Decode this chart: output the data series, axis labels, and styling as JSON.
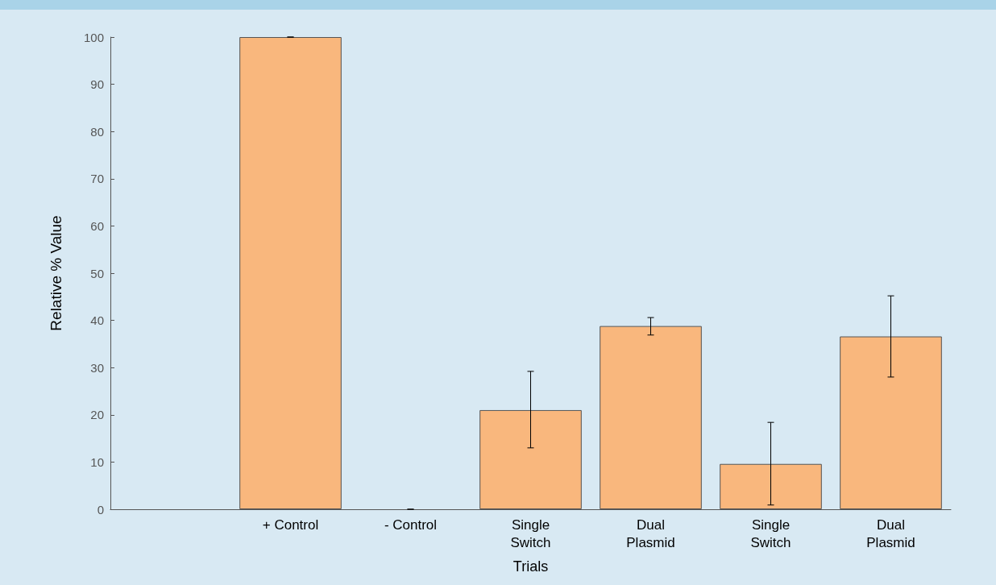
{
  "chart_data": {
    "type": "bar",
    "xlabel": "Trials",
    "ylabel": "Relative % Value",
    "categories": [
      null,
      "+ Control",
      "- Control",
      "Single\nSwitch",
      "Dual\nPlasmid",
      "Single\nSwitch",
      "Dual\nPlasmid"
    ],
    "values": [
      null,
      100,
      0,
      21,
      38.8,
      9.6,
      36.6
    ],
    "errors": [
      null,
      0,
      0,
      [
        13,
        29.2
      ],
      [
        36.9,
        40.6
      ],
      [
        0.9,
        18.4
      ],
      [
        28,
        45.2
      ]
    ],
    "color": "#f9b77d",
    "ylim": [
      0,
      100
    ],
    "yticks": [
      0,
      10,
      20,
      30,
      40,
      50,
      60,
      70,
      80,
      90,
      100
    ],
    "grid": false
  }
}
